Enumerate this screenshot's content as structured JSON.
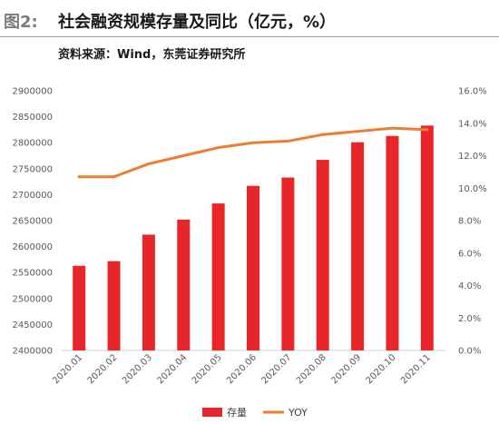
{
  "header": {
    "figure_label": "图2:",
    "title": "社会融资规模存量及同比（亿元，%）",
    "source": "资料来源：Wind，东莞证券研究所"
  },
  "chart_data": {
    "type": "bar",
    "categories": [
      "2020.01",
      "2020.02",
      "2020.03",
      "2020.04",
      "2020.05",
      "2020.06",
      "2020.07",
      "2020.08",
      "2020.09",
      "2020.10",
      "2020.11"
    ],
    "series": [
      {
        "name": "存量",
        "type": "bar",
        "axis": "left",
        "color": "#e8262a",
        "values": [
          2563000,
          2572000,
          2623000,
          2652000,
          2683000,
          2717000,
          2733000,
          2767000,
          2801000,
          2813000,
          2833000
        ]
      },
      {
        "name": "YOY",
        "type": "line",
        "axis": "right",
        "color": "#ed7d31",
        "values": [
          10.7,
          10.7,
          11.5,
          12.0,
          12.5,
          12.8,
          12.9,
          13.3,
          13.5,
          13.7,
          13.6
        ]
      }
    ],
    "y_left": {
      "min": 2400000,
      "max": 2900000,
      "step": 50000,
      "ticks": [
        "2400000",
        "2450000",
        "2500000",
        "2550000",
        "2600000",
        "2650000",
        "2700000",
        "2750000",
        "2800000",
        "2850000",
        "2900000"
      ]
    },
    "y_right": {
      "min": 0,
      "max": 16,
      "step": 2,
      "ticks": [
        "0.0%",
        "2.0%",
        "4.0%",
        "6.0%",
        "8.0%",
        "10.0%",
        "12.0%",
        "14.0%",
        "16.0%"
      ]
    },
    "grid": false,
    "legend": "bottom-center"
  }
}
